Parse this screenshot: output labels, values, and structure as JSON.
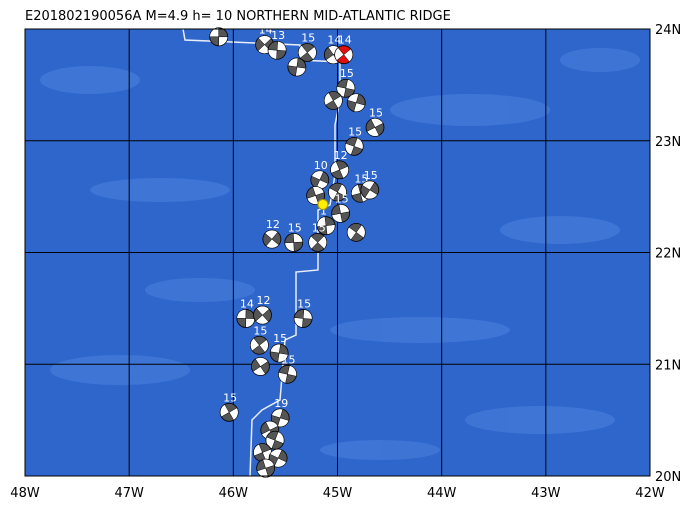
{
  "title": "E201802190056A M=4.9 h= 10 NORTHERN MID-ATLANTIC RIDGE",
  "map": {
    "xlim": [
      -48,
      -42
    ],
    "ylim": [
      20,
      24
    ],
    "xticks": [
      {
        "value": -48,
        "label": "48W"
      },
      {
        "value": -47,
        "label": "47W"
      },
      {
        "value": -46,
        "label": "46W"
      },
      {
        "value": -45,
        "label": "45W"
      },
      {
        "value": -44,
        "label": "44W"
      },
      {
        "value": -43,
        "label": "43W"
      },
      {
        "value": -42,
        "label": "42W"
      }
    ],
    "yticks": [
      {
        "value": 20,
        "label": "20N"
      },
      {
        "value": 21,
        "label": "21N"
      },
      {
        "value": 22,
        "label": "22N"
      },
      {
        "value": 23,
        "label": "23N"
      },
      {
        "value": 24,
        "label": "24N"
      }
    ],
    "main_event": {
      "lon": -44.94,
      "lat": 23.77,
      "label": "14"
    },
    "centroid": {
      "lon": -45.14,
      "lat": 22.43
    },
    "events": [
      {
        "lon": -46.14,
        "lat": 23.93,
        "label": "12"
      },
      {
        "lon": -45.7,
        "lat": 23.86,
        "label": "14"
      },
      {
        "lon": -45.58,
        "lat": 23.81,
        "label": "13"
      },
      {
        "lon": -45.29,
        "lat": 23.79,
        "label": "15"
      },
      {
        "lon": -45.39,
        "lat": 23.66
      },
      {
        "lon": -45.04,
        "lat": 23.77,
        "label": "14"
      },
      {
        "lon": -44.92,
        "lat": 23.47,
        "label": "15"
      },
      {
        "lon": -45.04,
        "lat": 23.36
      },
      {
        "lon": -44.82,
        "lat": 23.34
      },
      {
        "lon": -44.64,
        "lat": 23.12,
        "label": "15"
      },
      {
        "lon": -44.84,
        "lat": 22.95,
        "label": "15"
      },
      {
        "lon": -44.98,
        "lat": 22.74,
        "label": "12"
      },
      {
        "lon": -45.17,
        "lat": 22.65,
        "label": "10"
      },
      {
        "lon": -45.21,
        "lat": 22.51
      },
      {
        "lon": -45.0,
        "lat": 22.54
      },
      {
        "lon": -44.78,
        "lat": 22.53,
        "label": "15"
      },
      {
        "lon": -44.69,
        "lat": 22.56,
        "label": "15"
      },
      {
        "lon": -44.97,
        "lat": 22.35,
        "label": "15"
      },
      {
        "lon": -44.82,
        "lat": 22.18
      },
      {
        "lon": -45.11,
        "lat": 22.24,
        "label": "1"
      },
      {
        "lon": -45.63,
        "lat": 22.12,
        "label": "12"
      },
      {
        "lon": -45.42,
        "lat": 22.09,
        "label": "15"
      },
      {
        "lon": -45.19,
        "lat": 22.09,
        "label": "15"
      },
      {
        "lon": -45.88,
        "lat": 21.41,
        "label": "14"
      },
      {
        "lon": -45.72,
        "lat": 21.44,
        "label": "12"
      },
      {
        "lon": -45.33,
        "lat": 21.41,
        "label": "15"
      },
      {
        "lon": -45.75,
        "lat": 21.17,
        "label": "15"
      },
      {
        "lon": -45.56,
        "lat": 21.1,
        "label": "15"
      },
      {
        "lon": -45.74,
        "lat": 20.98
      },
      {
        "lon": -45.48,
        "lat": 20.91,
        "label": "15"
      },
      {
        "lon": -46.04,
        "lat": 20.57,
        "label": "15"
      },
      {
        "lon": -45.55,
        "lat": 20.52,
        "label": "19"
      },
      {
        "lon": -45.65,
        "lat": 20.41
      },
      {
        "lon": -45.6,
        "lat": 20.32
      },
      {
        "lon": -45.72,
        "lat": 20.21
      },
      {
        "lon": -45.57,
        "lat": 20.16
      },
      {
        "lon": -45.69,
        "lat": 20.07
      }
    ]
  }
}
